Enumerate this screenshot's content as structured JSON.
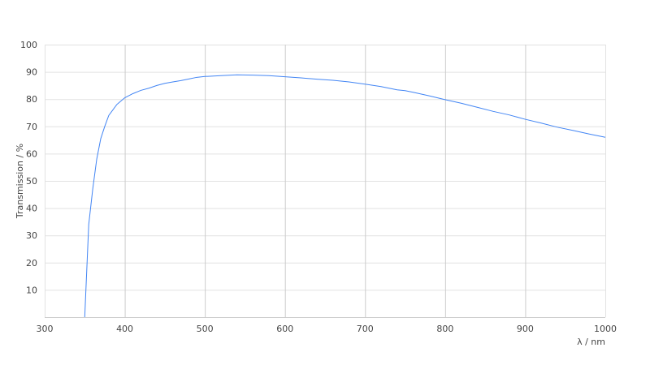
{
  "chart_data": {
    "type": "line",
    "title": "",
    "xlabel": "λ / nm",
    "ylabel": "Transmission / %",
    "xlim": [
      300,
      1000
    ],
    "ylim": [
      0,
      100
    ],
    "xticks": [
      300,
      400,
      500,
      600,
      700,
      800,
      900,
      1000
    ],
    "yticks": [
      10,
      20,
      30,
      40,
      50,
      60,
      70,
      80,
      90,
      100
    ],
    "grid": true,
    "line_color": "#4285f4",
    "series": [
      {
        "x": [
          350,
          355,
          360,
          365,
          370,
          375,
          380,
          390,
          400,
          410,
          420,
          430,
          440,
          450,
          460,
          470,
          480,
          490,
          500,
          520,
          540,
          560,
          580,
          600,
          620,
          640,
          660,
          680,
          700,
          720,
          740,
          750,
          760,
          780,
          800,
          820,
          840,
          860,
          880,
          900,
          920,
          940,
          960,
          980,
          1000
        ],
        "y": [
          0,
          34,
          47,
          58,
          65.5,
          70,
          74,
          78,
          80.5,
          82,
          83.2,
          84,
          85,
          85.8,
          86.3,
          86.8,
          87.4,
          88,
          88.3,
          88.6,
          88.9,
          88.8,
          88.6,
          88.2,
          87.8,
          87.3,
          86.9,
          86.3,
          85.5,
          84.6,
          83.4,
          83.1,
          82.5,
          81.2,
          79.8,
          78.5,
          77,
          75.5,
          74.2,
          72.6,
          71.2,
          69.7,
          68.5,
          67.2,
          66
        ]
      }
    ]
  }
}
